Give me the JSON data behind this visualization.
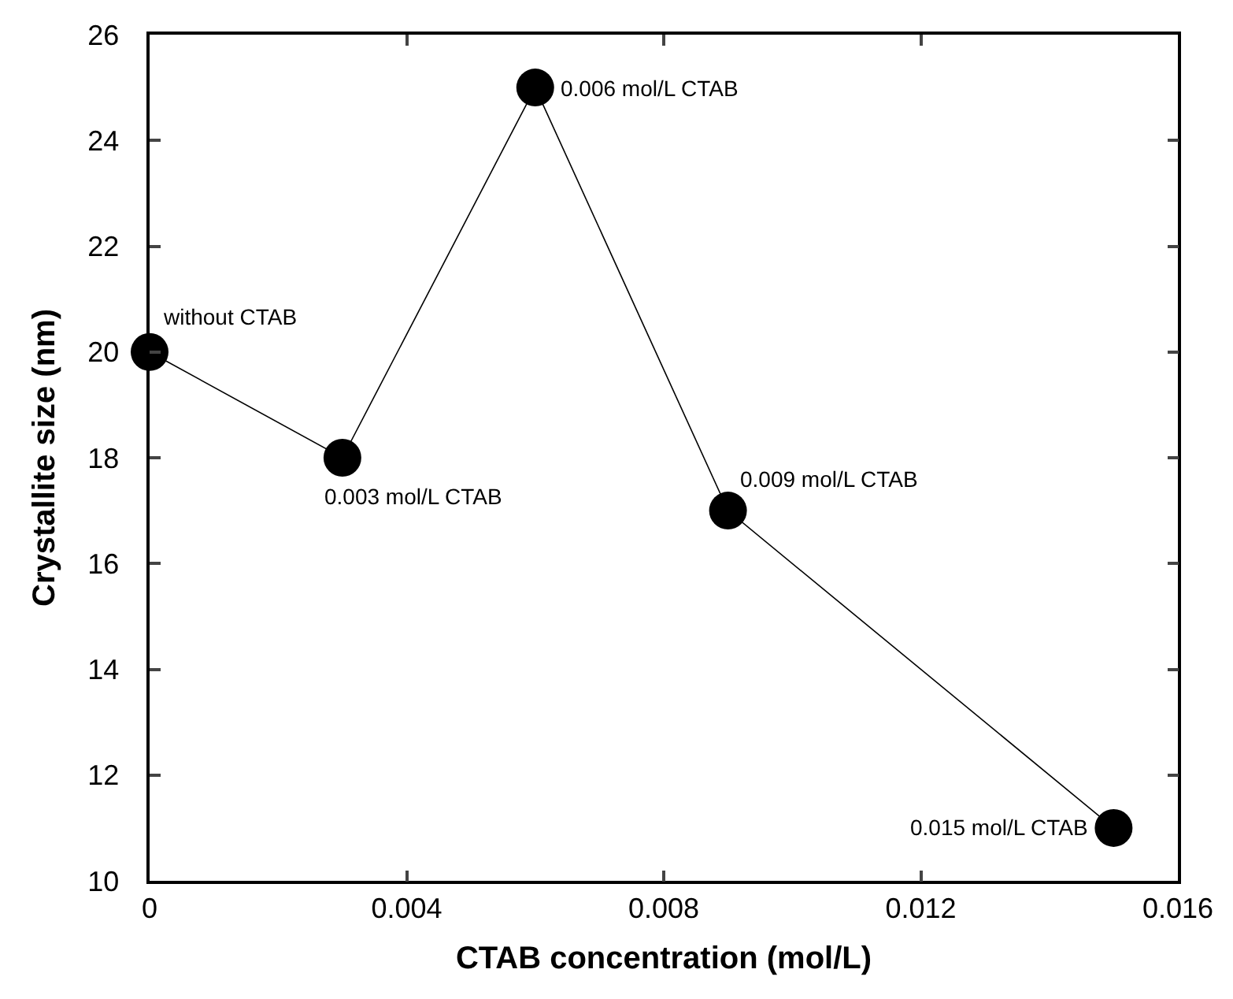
{
  "chart_data": {
    "type": "line",
    "xlabel": "CTAB concentration (mol/L)",
    "ylabel": "Crystallite size (nm)",
    "x": [
      0,
      0.003,
      0.006,
      0.009,
      0.015
    ],
    "series": [
      {
        "color": "#000000",
        "values": [
          20,
          18,
          25,
          17,
          11
        ]
      }
    ],
    "xlim": [
      0,
      0.016
    ],
    "xticks": [
      0,
      0.004,
      0.008,
      0.012,
      0.016
    ],
    "ylim": [
      10,
      26
    ],
    "yticks": [
      10,
      12,
      14,
      16,
      18,
      20,
      22,
      24,
      26
    ],
    "legend": false,
    "marker": "circle",
    "line_style": "solid",
    "annotations": [
      {
        "text": "without CTAB",
        "x": 0,
        "y": 20
      },
      {
        "text": "0.003 mol/L CTAB",
        "x": 0.003,
        "y": 18
      },
      {
        "text": "0.006 mol/L CTAB",
        "x": 0.006,
        "y": 25
      },
      {
        "text": "0.009 mol/L CTAB",
        "x": 0.009,
        "y": 17
      },
      {
        "text": "0.015 mol/L CTAB",
        "x": 0.015,
        "y": 11
      }
    ]
  }
}
